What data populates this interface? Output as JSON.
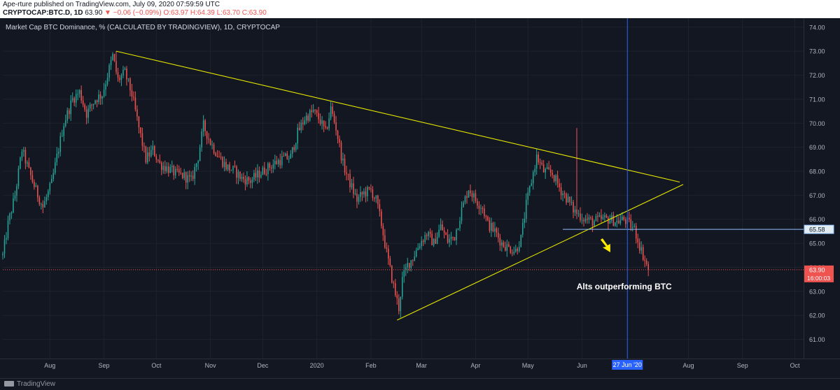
{
  "header": {
    "publisher": "Ape-rture published on TradingView.com, July 09, 2020 07:59:59 UTC",
    "symbol": "CRYPTOCAP:BTC.D, 1D",
    "last": "63.90",
    "change": "▼ −0.06 (−0.09%)",
    "ohlc": "O:63.97 H:64.39 L:63.70 C:63.90"
  },
  "footer": {
    "brand": "TradingView"
  },
  "colors": {
    "background": "#131722",
    "up": "#26a69a",
    "down": "#ef5350",
    "trendline": "#e6e600",
    "cursor": "#2962ff",
    "hline": "#90bfff",
    "arrow": "#ffeb00"
  },
  "chart_data": {
    "type": "candlestick",
    "title": "Market Cap BTC Dominance, % (CALCULATED BY TRADINGVIEW), 1D, CRYPTOCAP",
    "x_range": [
      "2019-07-05",
      "2020-10-06"
    ],
    "ylim": [
      60.2,
      74.2
    ],
    "y_ticks": [
      "61.00",
      "62.00",
      "63.00",
      "64.00",
      "65.00",
      "66.00",
      "67.00",
      "68.00",
      "69.00",
      "70.00",
      "71.00",
      "72.00",
      "73.00",
      "74.00"
    ],
    "x_ticks": [
      {
        "date": "2019-08-01",
        "label": "Aug"
      },
      {
        "date": "2019-09-01",
        "label": "Sep"
      },
      {
        "date": "2019-10-01",
        "label": "Oct"
      },
      {
        "date": "2019-11-01",
        "label": "Nov"
      },
      {
        "date": "2019-12-01",
        "label": "Dec"
      },
      {
        "date": "2020-01-01",
        "label": "2020"
      },
      {
        "date": "2020-02-01",
        "label": "Feb"
      },
      {
        "date": "2020-03-01",
        "label": "Mar"
      },
      {
        "date": "2020-04-01",
        "label": "Apr"
      },
      {
        "date": "2020-05-01",
        "label": "May"
      },
      {
        "date": "2020-06-01",
        "label": "Jun"
      },
      {
        "date": "2020-08-01",
        "label": "Aug"
      },
      {
        "date": "2020-09-01",
        "label": "Sep"
      },
      {
        "date": "2020-10-01",
        "label": "Oct"
      }
    ],
    "close_path": [
      [
        "2019-07-05",
        64.5
      ],
      [
        "2019-07-08",
        65.8
      ],
      [
        "2019-07-12",
        67.0
      ],
      [
        "2019-07-16",
        68.9
      ],
      [
        "2019-07-20",
        68.0
      ],
      [
        "2019-07-24",
        67.2
      ],
      [
        "2019-07-28",
        66.5
      ],
      [
        "2019-08-02",
        67.5
      ],
      [
        "2019-08-05",
        68.6
      ],
      [
        "2019-08-09",
        70.0
      ],
      [
        "2019-08-14",
        71.0
      ],
      [
        "2019-08-18",
        71.3
      ],
      [
        "2019-08-22",
        70.4
      ],
      [
        "2019-08-27",
        71.0
      ],
      [
        "2019-08-31",
        71.2
      ],
      [
        "2019-09-03",
        72.0
      ],
      [
        "2019-09-06",
        72.8
      ],
      [
        "2019-09-09",
        71.8
      ],
      [
        "2019-09-13",
        72.1
      ],
      [
        "2019-09-17",
        71.2
      ],
      [
        "2019-09-21",
        69.8
      ],
      [
        "2019-09-25",
        68.5
      ],
      [
        "2019-09-29",
        68.9
      ],
      [
        "2019-10-03",
        68.3
      ],
      [
        "2019-10-08",
        68.1
      ],
      [
        "2019-10-12",
        67.9
      ],
      [
        "2019-10-17",
        67.8
      ],
      [
        "2019-10-21",
        67.6
      ],
      [
        "2019-10-25",
        68.6
      ],
      [
        "2019-10-28",
        69.9
      ],
      [
        "2019-11-01",
        69.2
      ],
      [
        "2019-11-05",
        68.7
      ],
      [
        "2019-11-10",
        68.2
      ],
      [
        "2019-11-15",
        68.0
      ],
      [
        "2019-11-19",
        67.7
      ],
      [
        "2019-11-24",
        67.6
      ],
      [
        "2019-11-29",
        67.9
      ],
      [
        "2019-12-03",
        68.1
      ],
      [
        "2019-12-07",
        68.3
      ],
      [
        "2019-12-12",
        68.5
      ],
      [
        "2019-12-17",
        68.6
      ],
      [
        "2019-12-21",
        69.6
      ],
      [
        "2019-12-25",
        70.2
      ],
      [
        "2019-12-30",
        70.5
      ],
      [
        "2020-01-03",
        70.1
      ],
      [
        "2020-01-06",
        69.6
      ],
      [
        "2020-01-09",
        70.6
      ],
      [
        "2020-01-12",
        69.8
      ],
      [
        "2020-01-16",
        68.3
      ],
      [
        "2020-01-20",
        67.5
      ],
      [
        "2020-01-24",
        66.8
      ],
      [
        "2020-01-28",
        67.1
      ],
      [
        "2020-02-01",
        67.2
      ],
      [
        "2020-02-04",
        66.8
      ],
      [
        "2020-02-07",
        65.8
      ],
      [
        "2020-02-10",
        64.6
      ],
      [
        "2020-02-14",
        63.2
      ],
      [
        "2020-02-17",
        62.3
      ],
      [
        "2020-02-19",
        63.5
      ],
      [
        "2020-02-22",
        64.1
      ],
      [
        "2020-02-25",
        64.4
      ],
      [
        "2020-02-29",
        65.0
      ],
      [
        "2020-03-04",
        65.4
      ],
      [
        "2020-03-08",
        65.0
      ],
      [
        "2020-03-12",
        65.7
      ],
      [
        "2020-03-16",
        65.1
      ],
      [
        "2020-03-20",
        65.3
      ],
      [
        "2020-03-24",
        66.4
      ],
      [
        "2020-03-28",
        67.3
      ],
      [
        "2020-04-01",
        66.8
      ],
      [
        "2020-04-05",
        66.5
      ],
      [
        "2020-04-08",
        65.8
      ],
      [
        "2020-04-12",
        65.5
      ],
      [
        "2020-04-16",
        65.0
      ],
      [
        "2020-04-20",
        64.8
      ],
      [
        "2020-04-24",
        64.7
      ],
      [
        "2020-04-27",
        65.2
      ],
      [
        "2020-04-30",
        66.6
      ],
      [
        "2020-05-03",
        67.6
      ],
      [
        "2020-05-06",
        68.6
      ],
      [
        "2020-05-10",
        68.0
      ],
      [
        "2020-05-15",
        67.9
      ],
      [
        "2020-05-20",
        67.2
      ],
      [
        "2020-05-24",
        66.8
      ],
      [
        "2020-05-27",
        66.4
      ],
      [
        "2020-05-30",
        66.2
      ],
      [
        "2020-06-03",
        66.0
      ],
      [
        "2020-06-07",
        65.9
      ],
      [
        "2020-06-12",
        66.0
      ],
      [
        "2020-06-17",
        66.0
      ],
      [
        "2020-06-21",
        65.9
      ],
      [
        "2020-06-25",
        66.0
      ],
      [
        "2020-06-28",
        65.8
      ],
      [
        "2020-07-01",
        65.6
      ],
      [
        "2020-07-04",
        64.9
      ],
      [
        "2020-07-07",
        64.3
      ],
      [
        "2020-07-09",
        63.9
      ]
    ],
    "wick_spikes": [
      {
        "date": "2020-05-29",
        "high": 69.8
      },
      {
        "date": "2019-09-08",
        "high": 73.0
      },
      {
        "date": "2020-01-09",
        "high": 70.9
      }
    ],
    "trendlines": [
      {
        "from": [
          "2019-09-08",
          73.0
        ],
        "to": [
          "2020-07-27",
          67.55
        ]
      },
      {
        "from": [
          "2020-02-16",
          61.8
        ],
        "to": [
          "2020-07-29",
          67.45
        ]
      }
    ],
    "horizontal_line": {
      "value": 65.58,
      "from": "2020-05-21",
      "to": "2020-10-06",
      "label": "65.58"
    },
    "price_line": {
      "value": 63.9,
      "label": "63.90",
      "countdown": "16:00:03"
    },
    "cursor": {
      "date": "2020-06-27",
      "label": "27 Jun '20"
    },
    "arrow": {
      "date": "2020-06-14",
      "value": 64.8
    },
    "annotation": {
      "text": "Alts outperforming BTC",
      "date": "2020-06-30",
      "value": 63.2
    }
  }
}
